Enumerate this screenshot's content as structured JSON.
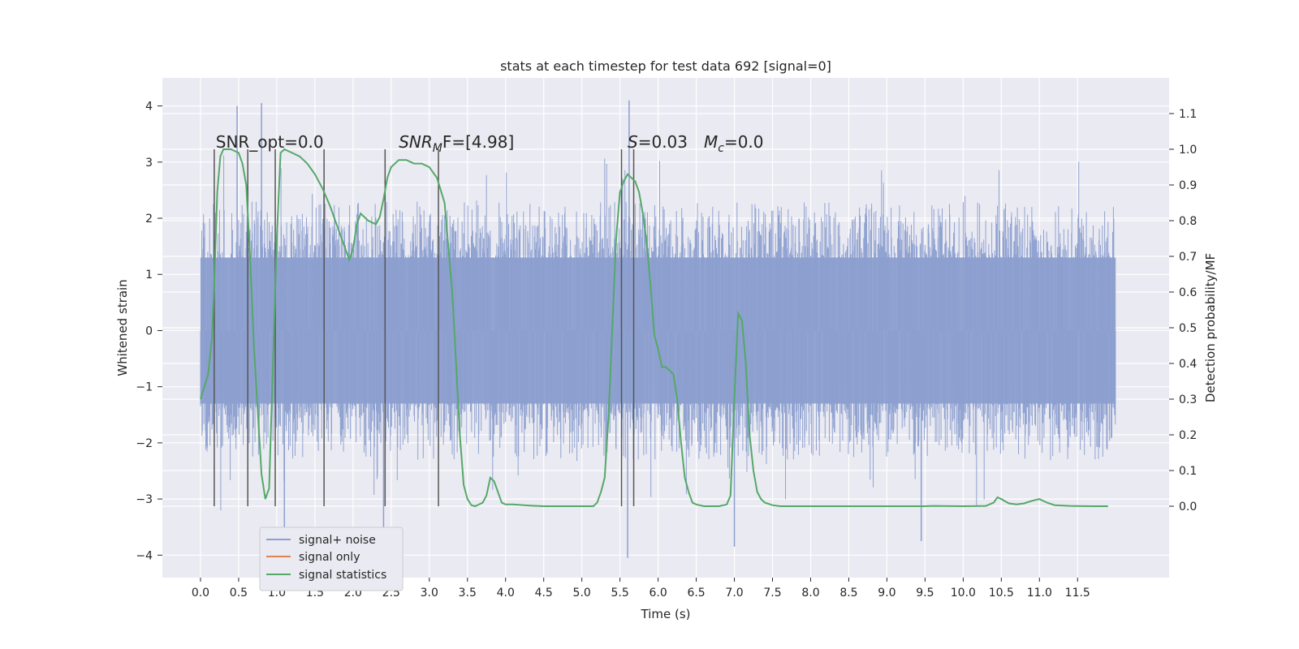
{
  "chart_data": {
    "type": "line",
    "title": "stats at each timestep for test data 692 [signal=0]",
    "xlabel": "Time (s)",
    "ylabel_left": "Whitened strain",
    "ylabel_right": "Detection probability/MF",
    "xlim": [
      -0.5,
      12.7
    ],
    "ylim_left": [
      -4.4,
      4.5
    ],
    "ylim_right": [
      -0.2,
      1.2
    ],
    "x_ticks": [
      0.0,
      0.5,
      1.0,
      1.5,
      2.0,
      2.5,
      3.0,
      3.5,
      4.0,
      4.5,
      5.0,
      5.5,
      6.0,
      6.5,
      7.0,
      7.5,
      8.0,
      8.5,
      9.0,
      9.5,
      10.0,
      10.5,
      11.0,
      11.5
    ],
    "x_tick_labels": [
      "0.0",
      "0.5",
      "1.0",
      "1.5",
      "2.0",
      "2.5",
      "3.0",
      "3.5",
      "4.0",
      "4.5",
      "5.0",
      "5.5",
      "6.0",
      "6.5",
      "7.0",
      "7.5",
      "8.0",
      "8.5",
      "9.0",
      "9.5",
      "10.0",
      "10.5",
      "11.0",
      "11.5"
    ],
    "y_left_ticks": [
      -4,
      -3,
      -2,
      -1,
      0,
      1,
      2,
      3,
      4
    ],
    "y_left_tick_labels": [
      "−4",
      "−3",
      "−2",
      "−1",
      "0",
      "1",
      "2",
      "3",
      "4"
    ],
    "y_right_ticks": [
      0.0,
      0.1,
      0.2,
      0.3,
      0.4,
      0.5,
      0.6,
      0.7,
      0.8,
      0.9,
      1.0,
      1.1
    ],
    "y_right_tick_labels": [
      "0.0",
      "0.1",
      "0.2",
      "0.3",
      "0.4",
      "0.5",
      "0.6",
      "0.7",
      "0.8",
      "0.9",
      "1.0",
      "1.1"
    ],
    "grid": true,
    "legend_position": "lower-left",
    "series": [
      {
        "name": "signal+ noise",
        "axis": "left",
        "color": "#8c9fcf",
        "noise_envelope": {
          "x_range": [
            0.0,
            12.0
          ],
          "typical_abs_max": 2.3,
          "peak_values": [
            {
              "x": 0.48,
              "y": 4.0
            },
            {
              "x": 0.8,
              "y": 4.05
            },
            {
              "x": 5.62,
              "y": 4.1
            },
            {
              "x": 5.6,
              "y": -4.05
            },
            {
              "x": 2.4,
              "y": -3.6
            },
            {
              "x": 1.1,
              "y": -3.6
            },
            {
              "x": 7.0,
              "y": -3.85
            },
            {
              "x": 9.45,
              "y": -3.75
            }
          ]
        }
      },
      {
        "name": "signal only",
        "axis": "left",
        "color": "#dd8452",
        "x": [],
        "y": []
      },
      {
        "name": "signal statistics",
        "axis": "right",
        "color": "#55a868",
        "x": [
          0.0,
          0.1,
          0.15,
          0.18,
          0.22,
          0.26,
          0.3,
          0.4,
          0.5,
          0.55,
          0.6,
          0.65,
          0.7,
          0.8,
          0.85,
          0.9,
          0.95,
          1.0,
          1.05,
          1.1,
          1.2,
          1.3,
          1.4,
          1.5,
          1.6,
          1.7,
          1.8,
          1.9,
          1.95,
          2.0,
          2.05,
          2.1,
          2.15,
          2.2,
          2.3,
          2.35,
          2.4,
          2.45,
          2.5,
          2.6,
          2.7,
          2.8,
          2.9,
          3.0,
          3.1,
          3.2,
          3.3,
          3.35,
          3.4,
          3.45,
          3.5,
          3.55,
          3.6,
          3.7,
          3.75,
          3.8,
          3.85,
          3.9,
          3.95,
          4.0,
          4.1,
          4.3,
          4.5,
          5.0,
          5.15,
          5.2,
          5.25,
          5.3,
          5.35,
          5.4,
          5.45,
          5.5,
          5.55,
          5.6,
          5.65,
          5.7,
          5.75,
          5.8,
          5.85,
          5.9,
          5.95,
          6.0,
          6.05,
          6.1,
          6.2,
          6.25,
          6.3,
          6.35,
          6.4,
          6.45,
          6.5,
          6.6,
          6.8,
          6.9,
          6.95,
          7.0,
          7.05,
          7.1,
          7.15,
          7.2,
          7.25,
          7.3,
          7.35,
          7.4,
          7.5,
          7.6,
          8.0,
          9.0,
          9.5,
          9.6,
          10.0,
          10.3,
          10.4,
          10.45,
          10.5,
          10.6,
          10.7,
          10.8,
          10.9,
          11.0,
          11.1,
          11.2,
          11.4,
          11.7,
          11.9
        ],
        "y": [
          0.3,
          0.37,
          0.47,
          0.63,
          0.88,
          0.98,
          1.0,
          1.0,
          0.99,
          0.96,
          0.9,
          0.7,
          0.45,
          0.09,
          0.02,
          0.05,
          0.4,
          0.75,
          0.99,
          1.0,
          0.99,
          0.98,
          0.96,
          0.93,
          0.89,
          0.84,
          0.78,
          0.72,
          0.69,
          0.72,
          0.79,
          0.82,
          0.81,
          0.8,
          0.79,
          0.81,
          0.86,
          0.92,
          0.95,
          0.97,
          0.97,
          0.96,
          0.96,
          0.95,
          0.92,
          0.85,
          0.6,
          0.4,
          0.2,
          0.06,
          0.02,
          0.003,
          0.0,
          0.01,
          0.03,
          0.08,
          0.07,
          0.04,
          0.01,
          0.005,
          0.005,
          0.002,
          0.0,
          0.0,
          0.0,
          0.01,
          0.04,
          0.08,
          0.25,
          0.5,
          0.75,
          0.88,
          0.91,
          0.93,
          0.92,
          0.91,
          0.88,
          0.82,
          0.74,
          0.62,
          0.48,
          0.44,
          0.39,
          0.39,
          0.37,
          0.3,
          0.18,
          0.08,
          0.04,
          0.01,
          0.005,
          0.0,
          0.0,
          0.005,
          0.03,
          0.3,
          0.54,
          0.52,
          0.4,
          0.2,
          0.1,
          0.04,
          0.02,
          0.01,
          0.003,
          0.0,
          0.0,
          0.0,
          0.0,
          0.001,
          0.0,
          0.001,
          0.01,
          0.025,
          0.02,
          0.008,
          0.005,
          0.008,
          0.015,
          0.02,
          0.01,
          0.003,
          0.001,
          0.0,
          0.0
        ]
      }
    ],
    "vertical_markers_x": [
      0.18,
      0.62,
      0.98,
      1.62,
      2.42,
      3.12,
      5.52,
      5.68
    ],
    "vertical_markers_range_right": [
      0.0,
      1.0
    ],
    "annotations": [
      {
        "id": "snr-opt",
        "text": "SNR_opt=0.0",
        "x": 0.2,
        "y_right": 1.0
      },
      {
        "id": "snr-mf",
        "text_main": "SNR",
        "text_sub": "M",
        "text_rest": "F=[4.98]",
        "x": 2.6,
        "y_right": 1.0
      },
      {
        "id": "s-value",
        "text_italic": "S",
        "text_rest": "=0.03",
        "x": 5.6,
        "y_right": 1.0
      },
      {
        "id": "mc-value",
        "text_italic": "M",
        "text_sub": "c",
        "text_rest": "=0.0",
        "x": 6.6,
        "y_right": 1.0
      }
    ]
  }
}
